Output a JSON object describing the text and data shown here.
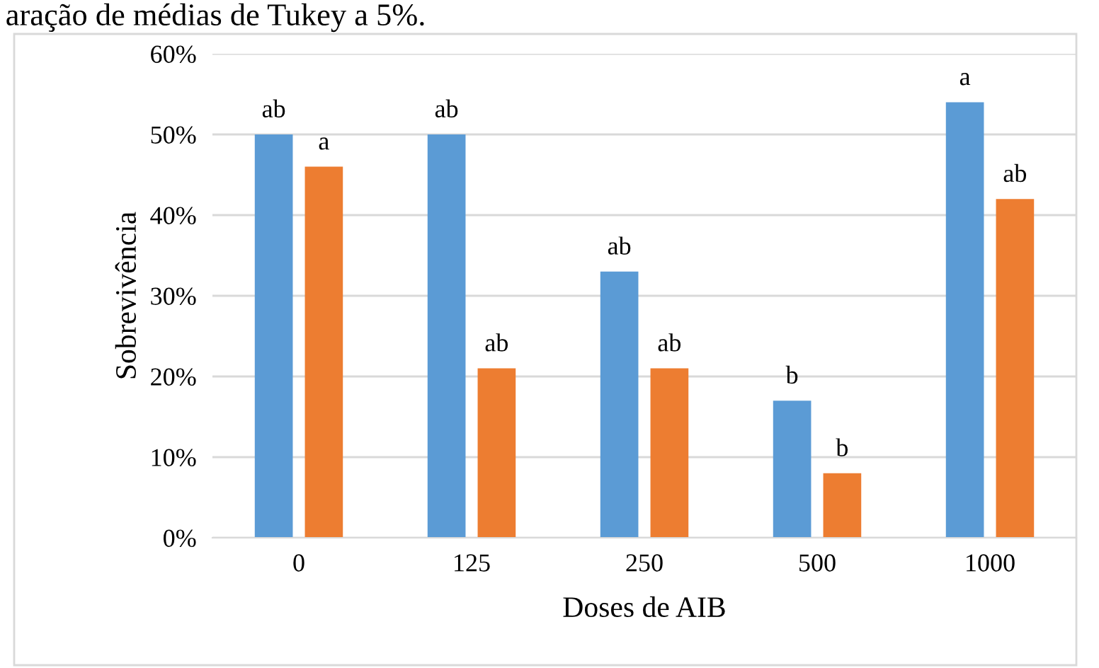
{
  "chart_data": {
    "type": "bar",
    "xlabel": "Doses de AIB",
    "ylabel": "Sobrevivência",
    "categories": [
      "0",
      "125",
      "250",
      "500",
      "1000"
    ],
    "series": [
      {
        "color": "#5b9bd5",
        "values": [
          50,
          50,
          33,
          17,
          54
        ],
        "value_labels": [
          "ab",
          "ab",
          "ab",
          "b",
          "a"
        ]
      },
      {
        "color": "#ed7d31",
        "values": [
          46,
          21,
          21,
          8,
          42
        ],
        "value_labels": [
          "a",
          "ab",
          "ab",
          "b",
          "ab"
        ]
      }
    ],
    "ylim": [
      0,
      60
    ],
    "yticks": [
      {
        "value": 0,
        "label": "0%"
      },
      {
        "value": 10,
        "label": "10%"
      },
      {
        "value": 20,
        "label": "20%"
      },
      {
        "value": 30,
        "label": "30%"
      },
      {
        "value": 40,
        "label": "40%"
      },
      {
        "value": 50,
        "label": "50%"
      },
      {
        "value": 60,
        "label": "60%"
      }
    ],
    "grid": "y",
    "legend": false,
    "annotations": [
      "aração de médias de Tukey a 5%."
    ]
  }
}
